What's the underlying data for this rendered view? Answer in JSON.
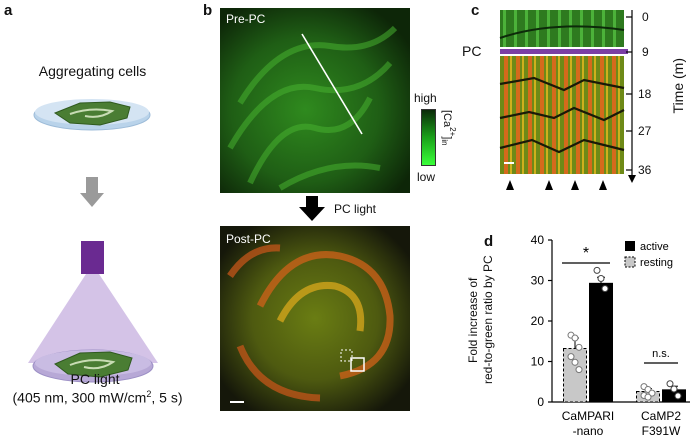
{
  "panel_a": {
    "label": "a",
    "top_caption": "Aggregating cells",
    "bottom_caption": "PC light",
    "params_main": "(405 nm, 300 mW/cm",
    "params_sup": "2",
    "params_tail": ", 5 s)",
    "colors": {
      "dish": "#b9d3ea",
      "cells": "#4a7d33",
      "light_source": "#6a2a91",
      "cone": "#cdb8e3",
      "arrow": "#9a9a9a"
    }
  },
  "panel_b": {
    "label": "b",
    "pre_label": "Pre-PC",
    "post_label": "Post-PC",
    "arrow_label": "PC light",
    "colorbar_high": "high",
    "colorbar_low": "low",
    "colorbar_axis": "[Ca",
    "colorbar_axis_sup": "2+",
    "colorbar_axis_tail": "]",
    "colorbar_axis_sub": "in"
  },
  "panel_c": {
    "label": "c",
    "pc_label": "PC",
    "axis_title": "Time (m)",
    "ticks": [
      "0",
      "9",
      "18",
      "27",
      "36"
    ],
    "arrowheads": 4,
    "pc_color": "#7b3fa4"
  },
  "panel_d": {
    "label": "d",
    "ylabel_line1": "Fold increase of",
    "ylabel_line2": "red-to-green ratio by PC",
    "yticks": [
      "0",
      "10",
      "20",
      "30",
      "40"
    ],
    "group1_line1": "CaMPARI",
    "group1_line2": "-nano",
    "group2_line1": "CaMP2",
    "group2_line2": "F391W",
    "sig_label": "*",
    "ns_label": "n.s.",
    "legend_active": "active",
    "legend_resting": "resting"
  },
  "chart_data": {
    "type": "bar",
    "categories": [
      "CaMPARI-nano",
      "CaMP2 F391W"
    ],
    "ylim": [
      0,
      40
    ],
    "ylabel": "Fold increase of red-to-green ratio by PC",
    "series": [
      {
        "name": "resting",
        "values": [
          13.2,
          2.6
        ],
        "errors": [
          2.6,
          0.7
        ],
        "color": "#c8c8c8",
        "points": [
          [
            16.5,
            15.8,
            13.5,
            11.2,
            9.8,
            8.0
          ],
          [
            3.8,
            3.1,
            2.2,
            1.6,
            1.2
          ]
        ]
      },
      {
        "name": "active",
        "values": [
          29.3,
          3.0
        ],
        "errors": [
          1.5,
          0.9
        ],
        "color": "#000000",
        "points": [
          [
            32.5,
            30.5,
            28.0
          ],
          [
            4.5,
            3.2,
            1.5
          ]
        ]
      }
    ]
  }
}
